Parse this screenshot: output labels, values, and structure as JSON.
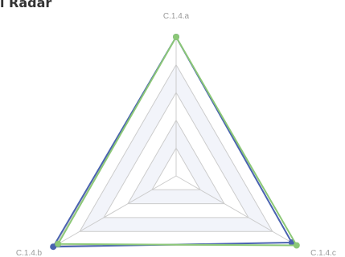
{
  "chart_data": {
    "type": "radar",
    "title": "l Radar",
    "indicators": [
      "C.1.4.a",
      "C.1.4.b",
      "C.1.4.c"
    ],
    "max": 1,
    "split_number": 5,
    "series": [
      {
        "color": "#4a63b0",
        "values": [
          1.0,
          1.02,
          0.96
        ]
      },
      {
        "color": "#8cc877",
        "values": [
          1.0,
          0.98,
          1.0
        ]
      }
    ],
    "split_area_colors": [
      "#ffffff",
      "#f2f4fa"
    ],
    "grid_line_color": "#cccccc"
  }
}
